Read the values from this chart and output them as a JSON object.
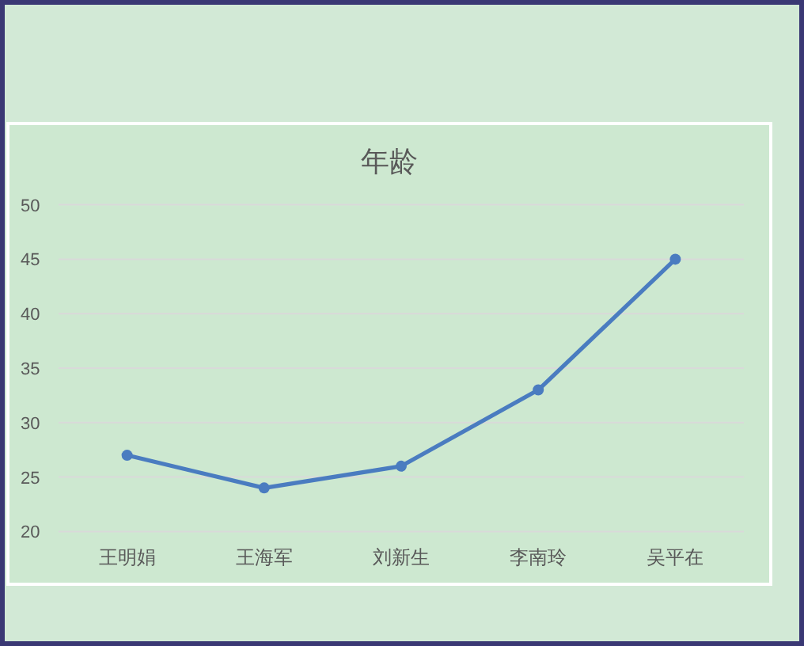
{
  "chart_data": {
    "type": "line",
    "title": "年龄",
    "categories": [
      "王明娟",
      "王海军",
      "刘新生",
      "李南玲",
      "吴平在"
    ],
    "values": [
      27,
      24,
      26,
      33,
      45
    ],
    "color": "#4a7cc0",
    "ylim": [
      20,
      50
    ],
    "yticks": [
      20,
      25,
      30,
      35,
      40,
      45,
      50
    ],
    "grid": "y",
    "marker": "circle",
    "line_style": "solid"
  }
}
